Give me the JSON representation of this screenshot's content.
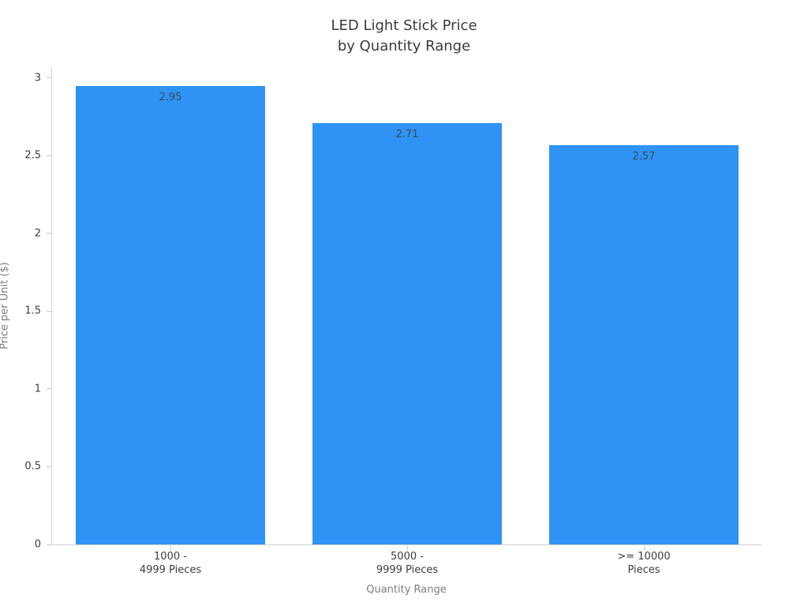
{
  "chart_data": {
    "type": "bar",
    "title": "LED Light Stick Price by Quantity Range",
    "title_lines": [
      "LED Light Stick Price",
      "by Quantity Range"
    ],
    "categories": [
      "1000 -\n4999 Pieces",
      "5000 -\n9999 Pieces",
      ">= 10000\nPieces"
    ],
    "values": [
      2.95,
      2.71,
      2.57
    ],
    "value_labels": [
      "2.95",
      "2.71",
      "2.57"
    ],
    "xlabel": "Quantity Range",
    "ylabel": "Price per Unit ($)",
    "ylim": [
      0,
      3.07
    ],
    "yticks": [
      0,
      0.5,
      1,
      1.5,
      2,
      2.5,
      3
    ],
    "ytick_labels": [
      "0",
      "0.5",
      "1",
      "1.5",
      "2",
      "2.5",
      "3"
    ],
    "bar_color": "#2E93F5",
    "value_label_color": "#3c4a55",
    "grid": false,
    "legend": false,
    "bar_width_fraction": 0.8
  }
}
